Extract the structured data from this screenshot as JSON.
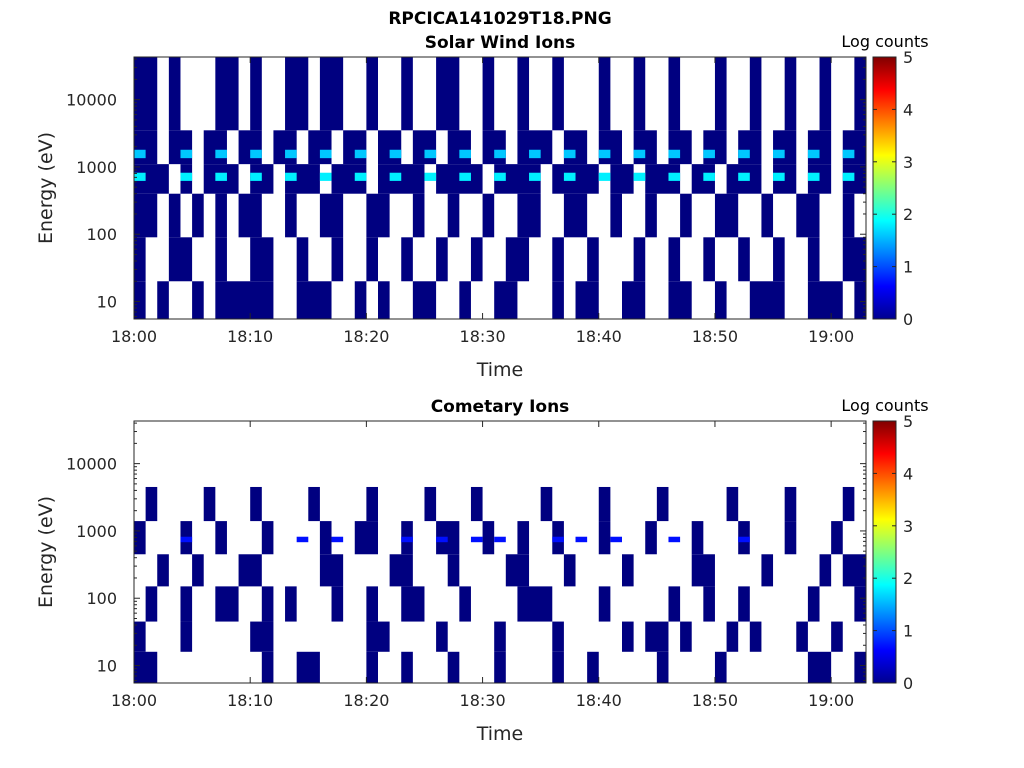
{
  "figure": {
    "title": "RPCICA141029T18.PNG"
  },
  "chart_data": [
    {
      "type": "heatmap",
      "title": "Solar Wind Ions",
      "xlabel": "Time",
      "ylabel": "Energy (eV)",
      "y_scale": "log",
      "ylim": [
        5.5,
        43000
      ],
      "xlim": [
        "18:00",
        "19:03"
      ],
      "x_ticks": [
        "18:00",
        "18:10",
        "18:20",
        "18:30",
        "18:40",
        "18:50",
        "19:00"
      ],
      "y_ticks": [
        "10",
        "100",
        "1000",
        "10000"
      ],
      "colorbar": {
        "label": "Log counts",
        "min": 0,
        "max": 5,
        "ticks": [
          "0",
          "1",
          "2",
          "3",
          "4",
          "5"
        ]
      },
      "bands": [
        {
          "energy_min": 5.5,
          "energy_max": 20,
          "log_counts": 0,
          "intervals": [
            [
              "18:00",
              "18:01"
            ],
            [
              "18:02",
              "18:03"
            ],
            [
              "18:05",
              "18:06"
            ],
            [
              "18:07",
              "18:12"
            ],
            [
              "18:14",
              "18:17"
            ],
            [
              "18:19",
              "18:20"
            ],
            [
              "18:21",
              "18:22"
            ],
            [
              "18:24",
              "18:26"
            ],
            [
              "18:28",
              "18:29"
            ],
            [
              "18:31",
              "18:33"
            ],
            [
              "18:36",
              "18:37"
            ],
            [
              "18:38",
              "18:40"
            ],
            [
              "18:42",
              "18:44"
            ],
            [
              "18:46",
              "18:48"
            ],
            [
              "18:50",
              "18:51"
            ],
            [
              "18:53",
              "18:56"
            ],
            [
              "18:58",
              "19:01"
            ],
            [
              "19:02",
              "19:03"
            ]
          ]
        },
        {
          "energy_min": 20,
          "energy_max": 90,
          "log_counts": 0,
          "intervals": [
            [
              "18:00",
              "18:01"
            ],
            [
              "18:03",
              "18:05"
            ],
            [
              "18:07",
              "18:08"
            ],
            [
              "18:10",
              "18:12"
            ],
            [
              "18:14",
              "18:15"
            ],
            [
              "18:17",
              "18:18"
            ],
            [
              "18:20",
              "18:21"
            ],
            [
              "18:23",
              "18:24"
            ],
            [
              "18:26",
              "18:27"
            ],
            [
              "18:29",
              "18:30"
            ],
            [
              "18:32",
              "18:34"
            ],
            [
              "18:36",
              "18:37"
            ],
            [
              "18:39",
              "18:40"
            ],
            [
              "18:43",
              "18:44"
            ],
            [
              "18:46",
              "18:47"
            ],
            [
              "18:49",
              "18:50"
            ],
            [
              "18:52",
              "18:53"
            ],
            [
              "18:55",
              "18:56"
            ],
            [
              "18:58",
              "18:59"
            ],
            [
              "19:01",
              "19:03"
            ]
          ]
        },
        {
          "energy_min": 90,
          "energy_max": 400,
          "log_counts": 0,
          "intervals": [
            [
              "18:00",
              "18:02"
            ],
            [
              "18:03",
              "18:04"
            ],
            [
              "18:05",
              "18:06"
            ],
            [
              "18:07",
              "18:08"
            ],
            [
              "18:09",
              "18:11"
            ],
            [
              "18:13",
              "18:14"
            ],
            [
              "18:16",
              "18:18"
            ],
            [
              "18:20",
              "18:22"
            ],
            [
              "18:24",
              "18:25"
            ],
            [
              "18:27",
              "18:28"
            ],
            [
              "18:30",
              "18:31"
            ],
            [
              "18:33",
              "18:35"
            ],
            [
              "18:37",
              "18:39"
            ],
            [
              "18:41",
              "18:42"
            ],
            [
              "18:44",
              "18:45"
            ],
            [
              "18:47",
              "18:48"
            ],
            [
              "18:50",
              "18:52"
            ],
            [
              "18:54",
              "18:55"
            ],
            [
              "18:57",
              "18:59"
            ],
            [
              "19:01",
              "19:02"
            ]
          ]
        },
        {
          "energy_min": 400,
          "energy_max": 1100,
          "log_counts": 0,
          "intervals": [
            [
              "18:00",
              "18:03"
            ],
            [
              "18:04",
              "18:05"
            ],
            [
              "18:06",
              "18:09"
            ],
            [
              "18:10",
              "18:12"
            ],
            [
              "18:13",
              "18:16"
            ],
            [
              "18:17",
              "18:20"
            ],
            [
              "18:21",
              "18:25"
            ],
            [
              "18:26",
              "18:30"
            ],
            [
              "18:31",
              "18:35"
            ],
            [
              "18:36",
              "18:40"
            ],
            [
              "18:41",
              "18:43"
            ],
            [
              "18:44",
              "18:47"
            ],
            [
              "18:48",
              "18:50"
            ],
            [
              "18:51",
              "18:54"
            ],
            [
              "18:55",
              "18:57"
            ],
            [
              "18:58",
              "19:00"
            ],
            [
              "19:01",
              "19:03"
            ]
          ]
        },
        {
          "energy_min": 1100,
          "energy_max": 3500,
          "log_counts": 0,
          "intervals": [
            [
              "18:00",
              "18:02"
            ],
            [
              "18:03",
              "18:05"
            ],
            [
              "18:06",
              "18:08"
            ],
            [
              "18:09",
              "18:11"
            ],
            [
              "18:12",
              "18:14"
            ],
            [
              "18:15",
              "18:17"
            ],
            [
              "18:18",
              "18:20"
            ],
            [
              "18:21",
              "18:23"
            ],
            [
              "18:24",
              "18:26"
            ],
            [
              "18:27",
              "18:29"
            ],
            [
              "18:30",
              "18:32"
            ],
            [
              "18:33",
              "18:36"
            ],
            [
              "18:37",
              "18:39"
            ],
            [
              "18:40",
              "18:42"
            ],
            [
              "18:43",
              "18:45"
            ],
            [
              "18:46",
              "18:48"
            ],
            [
              "18:49",
              "18:51"
            ],
            [
              "18:52",
              "18:54"
            ],
            [
              "18:55",
              "18:57"
            ],
            [
              "18:58",
              "19:00"
            ],
            [
              "19:01",
              "19:03"
            ]
          ]
        },
        {
          "energy_min": 3500,
          "energy_max": 43000,
          "log_counts": 0,
          "intervals": [
            [
              "18:00",
              "18:02"
            ],
            [
              "18:03",
              "18:04"
            ],
            [
              "18:07",
              "18:09"
            ],
            [
              "18:10",
              "18:11"
            ],
            [
              "18:13",
              "18:15"
            ],
            [
              "18:16",
              "18:18"
            ],
            [
              "18:20",
              "18:21"
            ],
            [
              "18:23",
              "18:24"
            ],
            [
              "18:26",
              "18:28"
            ],
            [
              "18:30",
              "18:31"
            ],
            [
              "18:33",
              "18:34"
            ],
            [
              "18:36",
              "18:37"
            ],
            [
              "18:40",
              "18:41"
            ],
            [
              "18:43",
              "18:44"
            ],
            [
              "18:46",
              "18:47"
            ],
            [
              "18:50",
              "18:51"
            ],
            [
              "18:53",
              "18:54"
            ],
            [
              "18:56",
              "18:57"
            ],
            [
              "18:59",
              "19:00"
            ],
            [
              "19:02",
              "19:03"
            ]
          ]
        }
      ],
      "peaks": [
        {
          "energy_min": 620,
          "energy_max": 820,
          "log_counts": 1.8,
          "times": [
            "18:00",
            "18:04",
            "18:07",
            "18:10",
            "18:13",
            "18:16",
            "18:19",
            "18:22",
            "18:25",
            "18:28",
            "18:31",
            "18:34",
            "18:37",
            "18:40",
            "18:43",
            "18:46",
            "18:49",
            "18:52",
            "18:55",
            "18:58",
            "19:01"
          ]
        },
        {
          "energy_min": 1350,
          "energy_max": 1800,
          "log_counts": 1.6,
          "times": [
            "18:00",
            "18:04",
            "18:07",
            "18:10",
            "18:13",
            "18:16",
            "18:19",
            "18:22",
            "18:25",
            "18:28",
            "18:31",
            "18:34",
            "18:37",
            "18:40",
            "18:43",
            "18:46",
            "18:49",
            "18:52",
            "18:55",
            "18:58",
            "19:01"
          ]
        }
      ]
    },
    {
      "type": "heatmap",
      "title": "Cometary Ions",
      "xlabel": "Time",
      "ylabel": "Energy (eV)",
      "y_scale": "log",
      "ylim": [
        5.5,
        43000
      ],
      "xlim": [
        "18:00",
        "19:03"
      ],
      "x_ticks": [
        "18:00",
        "18:10",
        "18:20",
        "18:30",
        "18:40",
        "18:50",
        "19:00"
      ],
      "y_ticks": [
        "10",
        "100",
        "1000",
        "10000"
      ],
      "colorbar": {
        "label": "Log counts",
        "min": 0,
        "max": 5,
        "ticks": [
          "0",
          "1",
          "2",
          "3",
          "4",
          "5"
        ]
      },
      "bands": [
        {
          "energy_min": 5.5,
          "energy_max": 16,
          "log_counts": 0,
          "intervals": [
            [
              "18:00",
              "18:02"
            ],
            [
              "18:11",
              "18:12"
            ],
            [
              "18:14",
              "18:16"
            ],
            [
              "18:20",
              "18:21"
            ],
            [
              "18:23",
              "18:24"
            ],
            [
              "18:27",
              "18:28"
            ],
            [
              "18:31",
              "18:32"
            ],
            [
              "18:36",
              "18:37"
            ],
            [
              "18:39",
              "18:40"
            ],
            [
              "18:45",
              "18:46"
            ],
            [
              "18:50",
              "18:51"
            ],
            [
              "18:58",
              "19:00"
            ],
            [
              "19:02",
              "19:03"
            ]
          ]
        },
        {
          "energy_min": 16,
          "energy_max": 45,
          "log_counts": 0,
          "intervals": [
            [
              "18:00",
              "18:01"
            ],
            [
              "18:04",
              "18:05"
            ],
            [
              "18:10",
              "18:12"
            ],
            [
              "18:20",
              "18:22"
            ],
            [
              "18:26",
              "18:27"
            ],
            [
              "18:31",
              "18:32"
            ],
            [
              "18:36",
              "18:37"
            ],
            [
              "18:42",
              "18:43"
            ],
            [
              "18:44",
              "18:46"
            ],
            [
              "18:47",
              "18:48"
            ],
            [
              "18:51",
              "18:52"
            ],
            [
              "18:53",
              "18:54"
            ],
            [
              "18:57",
              "18:58"
            ],
            [
              "19:00",
              "19:01"
            ]
          ]
        },
        {
          "energy_min": 45,
          "energy_max": 150,
          "log_counts": 0,
          "intervals": [
            [
              "18:01",
              "18:02"
            ],
            [
              "18:04",
              "18:05"
            ],
            [
              "18:07",
              "18:09"
            ],
            [
              "18:11",
              "18:12"
            ],
            [
              "18:13",
              "18:14"
            ],
            [
              "18:17",
              "18:18"
            ],
            [
              "18:20",
              "18:21"
            ],
            [
              "18:23",
              "18:25"
            ],
            [
              "18:28",
              "18:29"
            ],
            [
              "18:33",
              "18:36"
            ],
            [
              "18:40",
              "18:41"
            ],
            [
              "18:46",
              "18:47"
            ],
            [
              "18:49",
              "18:50"
            ],
            [
              "18:52",
              "18:53"
            ],
            [
              "18:58",
              "18:59"
            ],
            [
              "19:02",
              "19:03"
            ]
          ]
        },
        {
          "energy_min": 150,
          "energy_max": 450,
          "log_counts": 0,
          "intervals": [
            [
              "18:02",
              "18:03"
            ],
            [
              "18:05",
              "18:06"
            ],
            [
              "18:09",
              "18:11"
            ],
            [
              "18:16",
              "18:18"
            ],
            [
              "18:22",
              "18:24"
            ],
            [
              "18:27",
              "18:28"
            ],
            [
              "18:32",
              "18:34"
            ],
            [
              "18:37",
              "18:38"
            ],
            [
              "18:42",
              "18:43"
            ],
            [
              "18:48",
              "18:50"
            ],
            [
              "18:54",
              "18:55"
            ],
            [
              "18:59",
              "19:00"
            ],
            [
              "19:01",
              "19:03"
            ]
          ]
        },
        {
          "energy_min": 450,
          "energy_max": 1400,
          "log_counts": 0,
          "intervals": [
            [
              "18:00",
              "18:01"
            ],
            [
              "18:04",
              "18:05"
            ],
            [
              "18:07",
              "18:08"
            ],
            [
              "18:11",
              "18:12"
            ],
            [
              "18:16",
              "18:17"
            ],
            [
              "18:19",
              "18:21"
            ],
            [
              "18:23",
              "18:24"
            ],
            [
              "18:26",
              "18:28"
            ],
            [
              "18:30",
              "18:31"
            ],
            [
              "18:33",
              "18:34"
            ],
            [
              "18:36",
              "18:37"
            ],
            [
              "18:40",
              "18:41"
            ],
            [
              "18:44",
              "18:45"
            ],
            [
              "18:48",
              "18:49"
            ],
            [
              "18:52",
              "18:53"
            ],
            [
              "18:56",
              "18:57"
            ],
            [
              "19:00",
              "19:01"
            ]
          ]
        },
        {
          "energy_min": 1400,
          "energy_max": 4500,
          "log_counts": 0,
          "intervals": [
            [
              "18:01",
              "18:02"
            ],
            [
              "18:06",
              "18:07"
            ],
            [
              "18:10",
              "18:11"
            ],
            [
              "18:15",
              "18:16"
            ],
            [
              "18:20",
              "18:21"
            ],
            [
              "18:25",
              "18:26"
            ],
            [
              "18:29",
              "18:30"
            ],
            [
              "18:35",
              "18:36"
            ],
            [
              "18:40",
              "18:41"
            ],
            [
              "18:45",
              "18:46"
            ],
            [
              "18:51",
              "18:52"
            ],
            [
              "18:56",
              "18:57"
            ],
            [
              "19:01",
              "19:02"
            ]
          ]
        }
      ],
      "peaks": [
        {
          "energy_min": 680,
          "energy_max": 820,
          "log_counts": 0.7,
          "times": [
            "18:04",
            "18:14",
            "18:17",
            "18:23",
            "18:26",
            "18:29",
            "18:31",
            "18:36",
            "18:38",
            "18:41",
            "18:46",
            "18:52"
          ]
        }
      ]
    }
  ]
}
